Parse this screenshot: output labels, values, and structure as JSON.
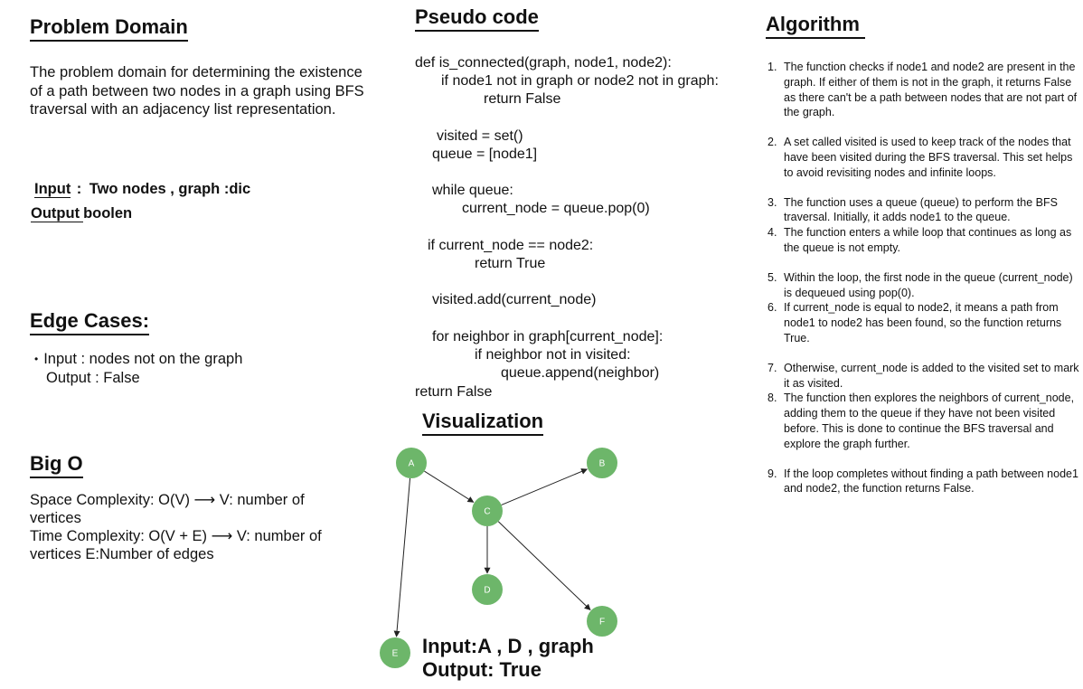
{
  "problem_domain": {
    "title": "Problem Domain",
    "description": "The problem domain for determining the existence of a path between two nodes in a graph using BFS traversal with an adjacency list representation.",
    "input_label": "Input",
    "input_sep": ":",
    "input_value": "Two nodes , graph :dic",
    "output_label": "Output",
    "output_value": "boolen"
  },
  "edge_cases": {
    "title": "Edge Cases:",
    "bullet": "•",
    "input_line": "Input : nodes not on the graph",
    "output_line": "Output : False"
  },
  "big_o": {
    "title": "Big O",
    "lines": [
      "Space Complexity: O(V) ⟶ V: number of",
      "vertices",
      "Time Complexity: O(V + E) ⟶ V: number of",
      "vertices   E:Number of edges"
    ]
  },
  "pseudo_code": {
    "title": "Pseudo code",
    "lines": [
      "def is_connected(graph, node1, node2):",
      "if node1 not in graph or node2 not in graph:",
      "return False",
      "visited = set()",
      "queue = [node1]",
      "while queue:",
      "current_node = queue.pop(0)",
      "if current_node == node2:",
      "return True",
      "visited.add(current_node)",
      "for neighbor in graph[current_node]:",
      "if neighbor not in visited:",
      "queue.append(neighbor)",
      "return False"
    ]
  },
  "visualization": {
    "title": "Visualization",
    "node_color": "#6db66a",
    "nodes": [
      "A",
      "B",
      "C",
      "D",
      "E",
      "F"
    ],
    "edges": [
      [
        "A",
        "C"
      ],
      [
        "C",
        "B"
      ],
      [
        "C",
        "D"
      ],
      [
        "C",
        "F"
      ],
      [
        "A",
        "E"
      ]
    ],
    "result_input": "Input:A , D , graph",
    "result_output": "Output: True"
  },
  "algorithm": {
    "title": "Algorithm",
    "steps": [
      {
        "num": "1.",
        "text": "The function checks if node1 and node2 are present in the graph. If either of them is not in the graph, it returns False as there can't be a path between nodes that are not part of the graph."
      },
      {
        "num": "2.",
        "text": "A set called visited is used to keep track of the nodes that have been visited during the BFS traversal. This set helps to avoid revisiting nodes and infinite loops."
      },
      {
        "num": "3.",
        "text": "The function uses a queue (queue) to perform the BFS traversal. Initially, it adds node1 to the queue."
      },
      {
        "num": "4.",
        "text": "The function enters a while loop that continues as long as the queue is not empty."
      },
      {
        "num": "5.",
        "text": "Within the loop, the first node in the queue (current_node) is dequeued using pop(0)."
      },
      {
        "num": "6.",
        "text": "If current_node is equal to node2, it means a path from node1 to node2 has been found, so the function returns True."
      },
      {
        "num": "7.",
        "text": "Otherwise, current_node is added to the visited set to mark it as visited."
      },
      {
        "num": "8.",
        "text": "The function then explores the neighbors of current_node, adding them to the queue if they have not been visited before. This is done to continue the BFS traversal and explore the graph further."
      },
      {
        "num": "9.",
        "text": "If the loop completes without finding a path between node1 and node2, the function returns False."
      }
    ]
  }
}
